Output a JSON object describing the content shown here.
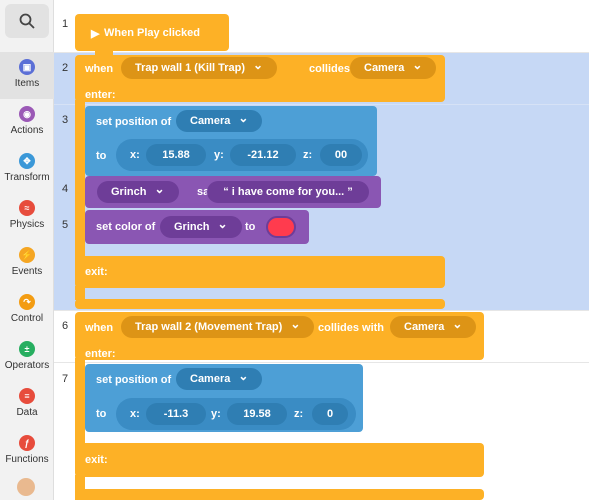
{
  "sidebar": {
    "items": [
      {
        "label": "Items",
        "icon": "cube-icon",
        "color": "#5b6fd6"
      },
      {
        "label": "Actions",
        "icon": "eye-icon",
        "color": "#9b59b6"
      },
      {
        "label": "Transform",
        "icon": "move-icon",
        "color": "#3b98d8"
      },
      {
        "label": "Physics",
        "icon": "physics-icon",
        "color": "#e74c3c"
      },
      {
        "label": "Events",
        "icon": "bolt-icon",
        "color": "#f5a623"
      },
      {
        "label": "Control",
        "icon": "control-icon",
        "color": "#f39c12"
      },
      {
        "label": "Operators",
        "icon": "operators-icon",
        "color": "#27ae60"
      },
      {
        "label": "Data",
        "icon": "data-icon",
        "color": "#e74c3c"
      },
      {
        "label": "Functions",
        "icon": "functions-icon",
        "color": "#e74c3c"
      }
    ]
  },
  "lines": [
    "1",
    "2",
    "3",
    "4",
    "5",
    "6",
    "7"
  ],
  "blocks": {
    "play": "When Play clicked",
    "when": "when",
    "collides": "collides with",
    "enter": "enter:",
    "exit": "exit:",
    "set_position": "set position of",
    "to": "to",
    "x": "x:",
    "y": "y:",
    "z": "z:",
    "say": "say",
    "set_color": "set color of",
    "to_color": "to",
    "trap1": "Trap wall 1 (Kill Trap)",
    "trap2": "Trap wall 2 (Movement Trap)",
    "camera": "Camera",
    "grinch": "Grinch",
    "say_text": "“  i have come for you...  ”",
    "pos1": {
      "x": "15.88",
      "y": "-21.12",
      "z": "00"
    },
    "pos2": {
      "x": "-11.3",
      "y": "19.58",
      "z": "0"
    },
    "color_value": "#ff3b4e"
  },
  "colors": {
    "selection": "#c6d8f5",
    "orange": "#fdb126",
    "blue": "#4d9fd6",
    "purple": "#8a56b3"
  }
}
